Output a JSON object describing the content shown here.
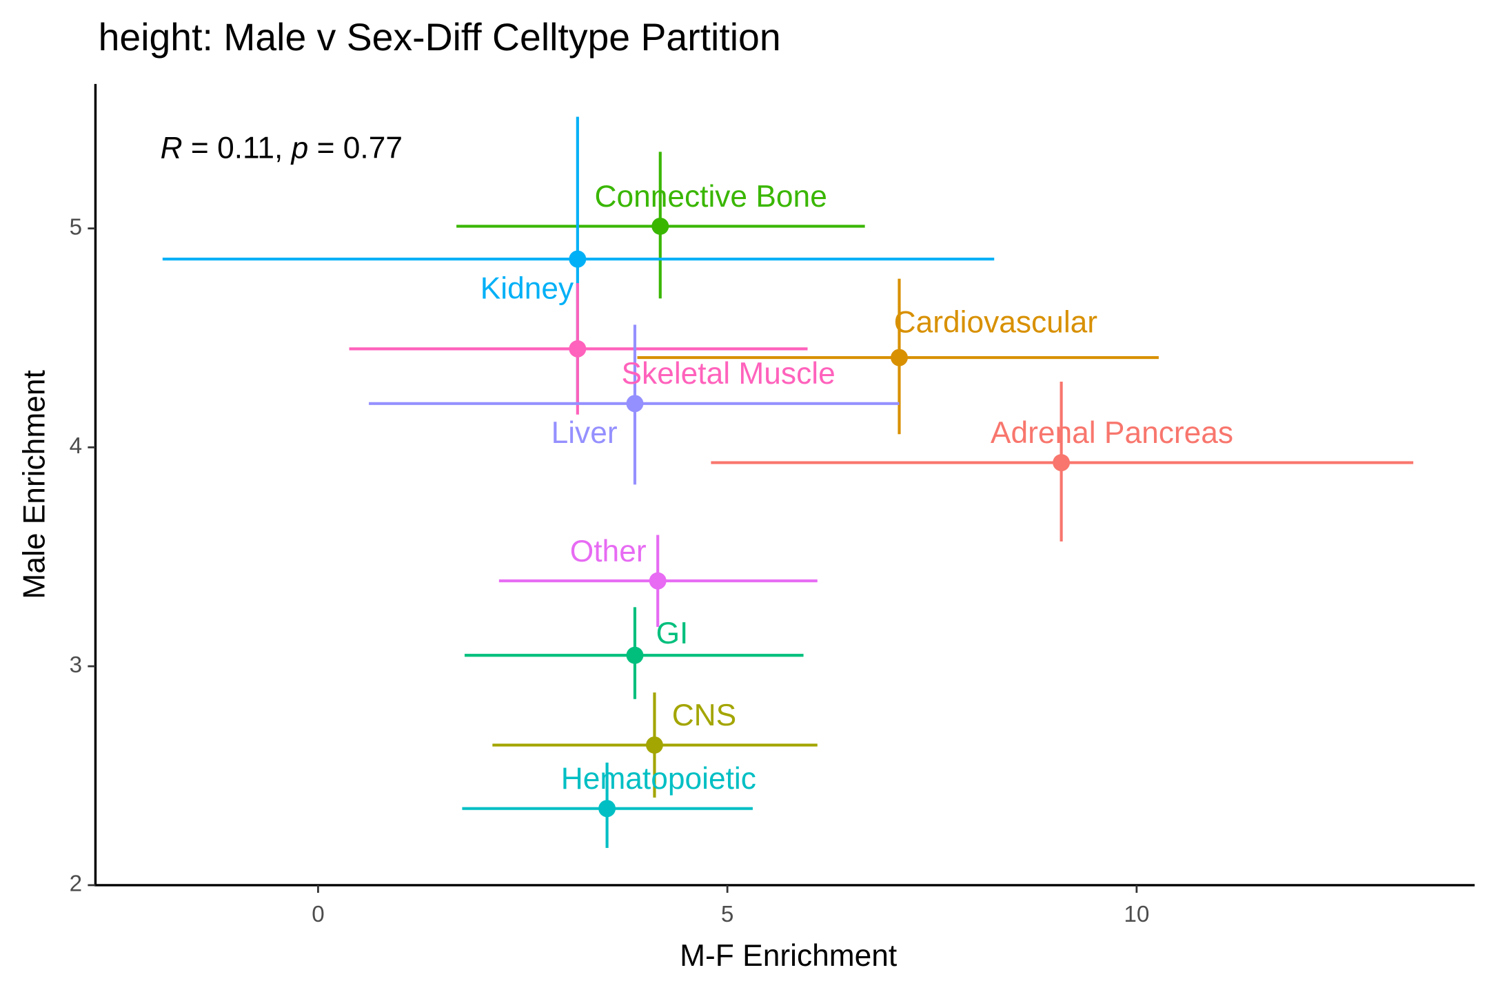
{
  "chart_data": {
    "type": "errorbar-scatter",
    "title": "height: Male v Sex-Diff Celltype Partition",
    "x_label": "M-F Enrichment",
    "y_label": "Male Enrichment",
    "annotation": [
      "R",
      " = 0.11, ",
      "p",
      " = 0.77"
    ],
    "xlim": [
      -2.72,
      14.13
    ],
    "ylim": [
      2,
      5.66
    ],
    "xticks": [
      0,
      5,
      10
    ],
    "yticks": [
      2,
      3,
      4,
      5
    ],
    "grid": false,
    "points": [
      {
        "name": "Connective Bone",
        "color": "#39b600",
        "x": 4.18,
        "y": 5.01,
        "xmin": 1.69,
        "xmax": 6.68,
        "ymin": 4.68,
        "ymax": 5.35
      },
      {
        "name": "Kidney",
        "color": "#00b0f6",
        "x": 3.17,
        "y": 4.86,
        "xmin": -1.9,
        "xmax": 8.26,
        "ymin": 4.2,
        "ymax": 5.51
      },
      {
        "name": "Cardiovascular",
        "color": "#d89000",
        "x": 7.1,
        "y": 4.41,
        "xmin": 3.9,
        "xmax": 10.27,
        "ymin": 4.06,
        "ymax": 4.77
      },
      {
        "name": "Skeletal Muscle",
        "color": "#ff62bc",
        "x": 3.17,
        "y": 4.45,
        "xmin": 0.38,
        "xmax": 5.98,
        "ymin": 4.15,
        "ymax": 4.75
      },
      {
        "name": "Liver",
        "color": "#9590ff",
        "x": 3.87,
        "y": 4.2,
        "xmin": 0.62,
        "xmax": 7.1,
        "ymin": 3.83,
        "ymax": 4.56
      },
      {
        "name": "Adrenal Pancreas",
        "color": "#f8766d",
        "x": 9.08,
        "y": 3.93,
        "xmin": 4.8,
        "xmax": 13.38,
        "ymin": 3.57,
        "ymax": 4.3
      },
      {
        "name": "Other",
        "color": "#e76bf3",
        "x": 4.15,
        "y": 3.39,
        "xmin": 2.21,
        "xmax": 6.1,
        "ymin": 3.18,
        "ymax": 3.6
      },
      {
        "name": "GI",
        "color": "#00bf7d",
        "x": 3.87,
        "y": 3.05,
        "xmin": 1.79,
        "xmax": 5.93,
        "ymin": 2.85,
        "ymax": 3.27
      },
      {
        "name": "CNS",
        "color": "#a3a500",
        "x": 4.11,
        "y": 2.64,
        "xmin": 2.13,
        "xmax": 6.1,
        "ymin": 2.4,
        "ymax": 2.88
      },
      {
        "name": "Hematopoietic",
        "color": "#00bfc4",
        "x": 3.53,
        "y": 2.35,
        "xmin": 1.76,
        "xmax": 5.31,
        "ymin": 2.17,
        "ymax": 2.56
      }
    ]
  }
}
